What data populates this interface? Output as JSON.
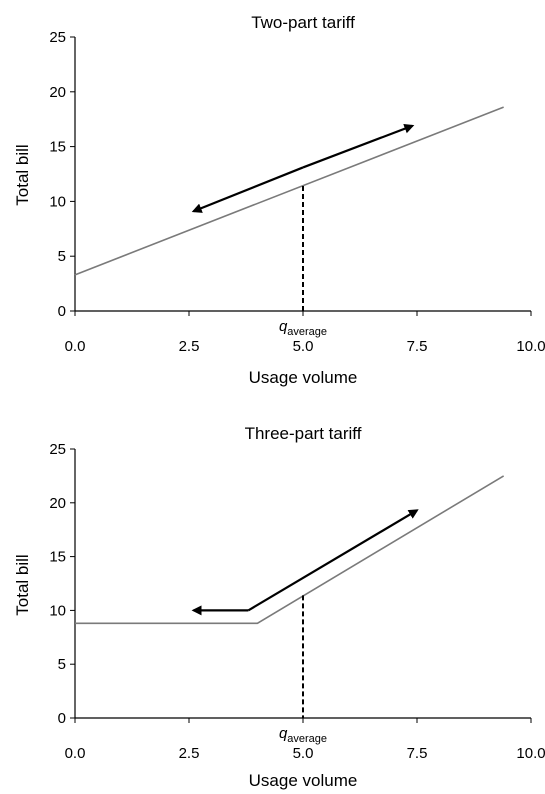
{
  "chart_data": [
    {
      "type": "line",
      "title": "Two-part tariff",
      "xlabel": "Usage volume",
      "ylabel": "Total bill",
      "xlim": [
        0,
        10
      ],
      "ylim": [
        0,
        25
      ],
      "xticks": [
        "0.0",
        "2.5",
        "5.0",
        "7.5",
        "10.0"
      ],
      "yticks": [
        "0",
        "5",
        "10",
        "15",
        "20",
        "25"
      ],
      "grid": false,
      "series": [
        {
          "x": [
            0,
            9.4
          ],
          "y": [
            3.3,
            18.6
          ],
          "color": "#7a7a7a"
        }
      ],
      "annotations": {
        "marker_label": "q",
        "marker_subscript": "average",
        "marker_x": 5.0,
        "marker_y": 11.4,
        "arrows": [
          {
            "from": [
              2.8,
              11.4
            ],
            "to": [
              2.6,
              9.1
            ],
            "note_points": [
              [
                5.0,
                13.1
              ],
              [
                2.6,
                9.1
              ]
            ]
          },
          {
            "from": [
              5.0,
              13.1
            ],
            "to": [
              7.4,
              16.9
            ]
          }
        ]
      }
    },
    {
      "type": "line",
      "title": "Three-part tariff",
      "xlabel": "Usage volume",
      "ylabel": "Total bill",
      "xlim": [
        0,
        10
      ],
      "ylim": [
        0,
        25
      ],
      "xticks": [
        "0.0",
        "2.5",
        "5.0",
        "7.5",
        "10.0"
      ],
      "yticks": [
        "0",
        "5",
        "10",
        "15",
        "20",
        "25"
      ],
      "grid": false,
      "series": [
        {
          "x": [
            0,
            4.0,
            9.4
          ],
          "y": [
            8.8,
            8.8,
            22.5
          ],
          "color": "#7a7a7a"
        }
      ],
      "annotations": {
        "marker_label": "q",
        "marker_subscript": "average",
        "marker_x": 5.0,
        "marker_y": 11.4,
        "arrows": [
          {
            "points": [
              [
                3.8,
                10.0
              ],
              [
                2.6,
                10.0
              ]
            ]
          },
          {
            "points": [
              [
                3.8,
                10.0
              ],
              [
                7.5,
                19.3
              ]
            ]
          }
        ]
      }
    }
  ]
}
